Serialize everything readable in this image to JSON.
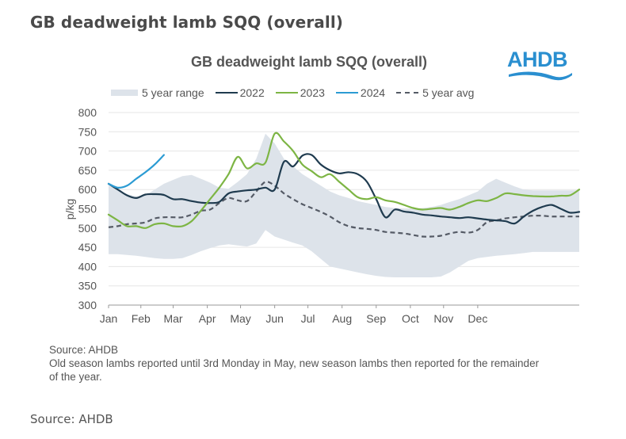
{
  "page": {
    "heading": "GB deadweight lamb SQQ (overall)",
    "source_caption": "Source: AHDB"
  },
  "logo": {
    "text": "AHDB",
    "color": "#2a8fd0"
  },
  "footnote": {
    "line1": "Source: AHDB",
    "line2": "Old season lambs reported until 3rd Monday in May, new season lambs then reported for the remainder of the year."
  },
  "chart_data": {
    "type": "line",
    "title": "GB deadweight lamb SQQ (overall)",
    "xlabel": "",
    "ylabel": "p/kg",
    "ylim": [
      300,
      800
    ],
    "yticks": [
      300,
      350,
      400,
      450,
      500,
      550,
      600,
      650,
      700,
      750,
      800
    ],
    "xlim_weeks": [
      1,
      52
    ],
    "month_ticks": [
      {
        "label": "Jan",
        "week": 1
      },
      {
        "label": "Feb",
        "week": 4.5
      },
      {
        "label": "Mar",
        "week": 8
      },
      {
        "label": "Apr",
        "week": 11.7
      },
      {
        "label": "May",
        "week": 15.3
      },
      {
        "label": "Jun",
        "week": 19
      },
      {
        "label": "Jul",
        "week": 22.6
      },
      {
        "label": "Aug",
        "week": 26.3
      },
      {
        "label": "Sep",
        "week": 30
      },
      {
        "label": "Oct",
        "week": 33.7
      },
      {
        "label": "Nov",
        "week": 37.3
      },
      {
        "label": "Dec",
        "week": 41
      }
    ],
    "grid": true,
    "legend_position": "top",
    "legend": [
      {
        "name": "5 year range",
        "kind": "band",
        "color": "#dde3ea"
      },
      {
        "name": "2022",
        "kind": "line",
        "color": "#1f3b4f"
      },
      {
        "name": "2023",
        "kind": "line",
        "color": "#7db544"
      },
      {
        "name": "2024",
        "kind": "line",
        "color": "#2b9bd3"
      },
      {
        "name": "5 year avg",
        "kind": "dashed",
        "color": "#555b66"
      }
    ],
    "x_weeks": [
      1,
      2,
      3,
      4,
      5,
      6,
      7,
      8,
      9,
      10,
      11,
      12,
      13,
      14,
      15,
      16,
      17,
      18,
      19,
      20,
      21,
      22,
      23,
      24,
      25,
      26,
      27,
      28,
      29,
      30,
      31,
      32,
      33,
      34,
      35,
      36,
      37,
      38,
      39,
      40,
      41,
      42,
      43,
      44,
      45,
      46,
      47,
      48,
      49,
      50,
      51,
      52
    ],
    "band": {
      "name": "5 year range",
      "upper": [
        610,
        600,
        588,
        582,
        585,
        600,
        615,
        625,
        635,
        638,
        628,
        618,
        605,
        602,
        620,
        640,
        680,
        745,
        720,
        680,
        660,
        640,
        625,
        610,
        595,
        585,
        578,
        570,
        565,
        560,
        555,
        552,
        550,
        550,
        552,
        555,
        560,
        568,
        575,
        585,
        595,
        615,
        628,
        618,
        608,
        600,
        598,
        598,
        598,
        598,
        598,
        598
      ],
      "lower": [
        432,
        432,
        430,
        428,
        425,
        422,
        420,
        420,
        422,
        430,
        440,
        448,
        455,
        458,
        455,
        452,
        460,
        495,
        478,
        470,
        462,
        455,
        440,
        420,
        400,
        395,
        390,
        385,
        380,
        376,
        373,
        372,
        372,
        372,
        372,
        372,
        374,
        385,
        400,
        415,
        422,
        425,
        428,
        430,
        432,
        435,
        438,
        438,
        438,
        438,
        438,
        438
      ]
    },
    "series": [
      {
        "name": "2022",
        "color": "#1f3b4f",
        "values": [
          615,
          600,
          585,
          578,
          587,
          588,
          586,
          575,
          575,
          570,
          566,
          565,
          568,
          590,
          595,
          598,
          600,
          605,
          600,
          672,
          660,
          688,
          690,
          665,
          650,
          642,
          645,
          640,
          620,
          575,
          528,
          548,
          543,
          540,
          535,
          533,
          530,
          528,
          526,
          528,
          525,
          522,
          520,
          518,
          512,
          530,
          545,
          555,
          560,
          550,
          540,
          542
        ]
      },
      {
        "name": "2023",
        "color": "#7db544",
        "values": [
          535,
          520,
          505,
          505,
          500,
          510,
          512,
          505,
          505,
          518,
          545,
          575,
          605,
          640,
          685,
          655,
          668,
          670,
          745,
          725,
          700,
          665,
          648,
          632,
          640,
          620,
          600,
          580,
          575,
          580,
          572,
          568,
          560,
          552,
          548,
          550,
          552,
          548,
          555,
          565,
          572,
          570,
          578,
          590,
          588,
          585,
          583,
          582,
          582,
          584,
          585,
          600
        ]
      },
      {
        "name": "2024",
        "color": "#2b9bd3",
        "values": [
          615,
          605,
          610,
          628,
          645,
          665,
          690
        ]
      },
      {
        "name": "5 year avg",
        "color": "#555b66",
        "dashed": true,
        "values": [
          502,
          505,
          510,
          512,
          515,
          525,
          528,
          528,
          528,
          535,
          545,
          548,
          565,
          578,
          572,
          570,
          595,
          620,
          610,
          590,
          575,
          562,
          552,
          542,
          530,
          515,
          505,
          500,
          498,
          495,
          490,
          488,
          486,
          482,
          478,
          478,
          480,
          486,
          490,
          488,
          495,
          515,
          520,
          525,
          528,
          530,
          532,
          532,
          530,
          530,
          530,
          530
        ]
      }
    ]
  }
}
